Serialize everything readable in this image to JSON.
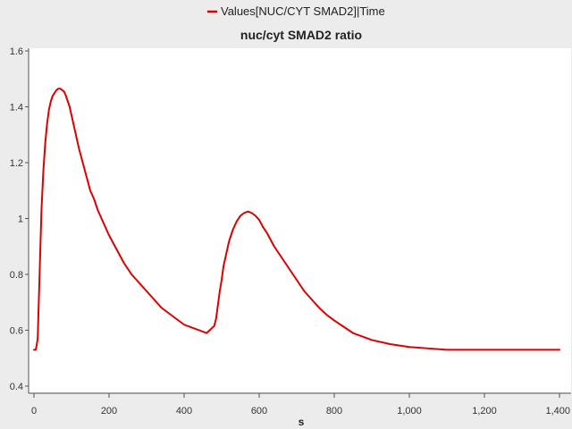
{
  "chart_data": {
    "type": "line",
    "title": "nuc/cyt SMAD2 ratio",
    "xlabel": "s",
    "ylabel": "",
    "xlim": [
      0,
      1400
    ],
    "ylim": [
      0.4,
      1.6
    ],
    "x_ticks": [
      0,
      200,
      400,
      600,
      800,
      1000,
      1200,
      1400
    ],
    "x_tick_labels": [
      "0",
      "200",
      "400",
      "600",
      "800",
      "1,000",
      "1,200",
      "1,400"
    ],
    "y_ticks": [
      0.4,
      0.6,
      0.8,
      1.0,
      1.2,
      1.4,
      1.6
    ],
    "y_tick_labels": [
      "0.4",
      "0.6",
      "0.8",
      "1",
      "1.2",
      "1.4",
      "1.6"
    ],
    "grid": false,
    "legend_position": "top-center",
    "series": [
      {
        "name": "Values[NUC/CYT SMAD2]|Time",
        "color": "#dd0000",
        "x": [
          0,
          5,
          10,
          15,
          20,
          25,
          30,
          35,
          40,
          45,
          50,
          55,
          60,
          65,
          70,
          75,
          80,
          85,
          90,
          95,
          100,
          110,
          120,
          130,
          140,
          150,
          160,
          170,
          180,
          200,
          220,
          240,
          260,
          280,
          300,
          320,
          340,
          360,
          380,
          400,
          420,
          440,
          460,
          480,
          485,
          490,
          495,
          500,
          505,
          510,
          515,
          520,
          525,
          530,
          540,
          550,
          560,
          570,
          580,
          590,
          600,
          610,
          620,
          640,
          660,
          680,
          700,
          720,
          740,
          760,
          780,
          800,
          850,
          900,
          950,
          1000,
          1050,
          1100,
          1150,
          1200,
          1300,
          1400
        ],
        "y": [
          0.53,
          0.53,
          0.57,
          0.8,
          1.03,
          1.17,
          1.27,
          1.34,
          1.39,
          1.42,
          1.44,
          1.45,
          1.46,
          1.465,
          1.465,
          1.46,
          1.455,
          1.44,
          1.42,
          1.4,
          1.37,
          1.31,
          1.25,
          1.2,
          1.15,
          1.1,
          1.07,
          1.03,
          1.0,
          0.94,
          0.89,
          0.84,
          0.8,
          0.77,
          0.74,
          0.71,
          0.68,
          0.66,
          0.64,
          0.62,
          0.61,
          0.6,
          0.59,
          0.615,
          0.64,
          0.69,
          0.74,
          0.78,
          0.83,
          0.86,
          0.89,
          0.92,
          0.94,
          0.96,
          0.99,
          1.01,
          1.02,
          1.025,
          1.02,
          1.01,
          0.995,
          0.97,
          0.95,
          0.9,
          0.86,
          0.82,
          0.78,
          0.74,
          0.71,
          0.68,
          0.655,
          0.635,
          0.59,
          0.565,
          0.55,
          0.54,
          0.535,
          0.53,
          0.53,
          0.53,
          0.53,
          0.53
        ]
      }
    ]
  }
}
